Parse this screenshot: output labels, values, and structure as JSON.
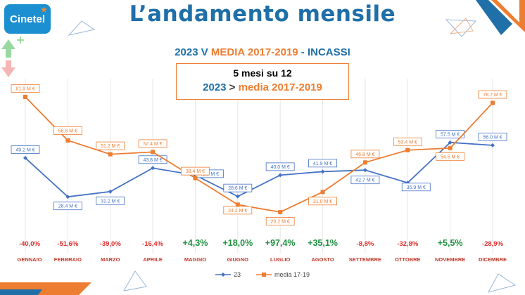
{
  "header": {
    "logo_text": "Cinetel",
    "title": "L’andamento mensile"
  },
  "subtitle": {
    "part1": "2023 V ",
    "part2": "MEDIA 2017-2019",
    "part3": " - INCASSI"
  },
  "info_box": {
    "line1": "5 mesi su 12",
    "line2_a": "2023",
    "line2_b": " > ",
    "line2_c": "media 2017-2019"
  },
  "colors": {
    "series_2023": "#4472c4",
    "series_media": "#ed7d31",
    "positive": "#1e8f3e",
    "negative": "#e03030",
    "title": "#1f6fa8"
  },
  "chart_data": {
    "type": "line",
    "categories": [
      "GENNAIO",
      "FEBBRAIO",
      "MARZO",
      "APRILE",
      "MAGGIO",
      "GIUGNO",
      "LUGLIO",
      "AGOSTO",
      "SETTEMBRE",
      "OTTOBRE",
      "NOVEMBRE",
      "DICEMBRE"
    ],
    "series": [
      {
        "name": "23",
        "values": [
          49.2,
          28.4,
          31.2,
          43.8,
          40.0,
          28.6,
          40.0,
          41.9,
          42.7,
          35.9,
          57.5,
          56.0
        ],
        "labels": [
          "49.2 M €",
          "28.4 M €",
          "31.2 M €",
          "43.8 M €",
          "40.0 M €",
          "28.6 M €",
          "40.0 M €",
          "41.9 M €",
          "42.7 M €",
          "35.9 M €",
          "57.5 M €",
          "56.0 M €"
        ]
      },
      {
        "name": "media 17-19",
        "values": [
          81.9,
          58.6,
          51.2,
          52.4,
          38.4,
          24.2,
          20.2,
          31.0,
          46.8,
          53.4,
          54.5,
          78.7
        ],
        "labels": [
          "81.9 M €",
          "58.6 M €",
          "51.2 M €",
          "52.4 M €",
          "38.4 M €",
          "24.2 M €",
          "20.2 M €",
          "31.0 M €",
          "46.8 M €",
          "53.4 M €",
          "54.5 M €",
          "78.7 M €"
        ]
      }
    ],
    "pct_changes": [
      "-40,0%",
      "-51,6%",
      "-39,0%",
      "-16,4%",
      "+4,3%",
      "+18,0%",
      "+97,4%",
      "+35,1%",
      "-8,8%",
      "-32,8%",
      "+5,5%",
      "-28,9%"
    ],
    "grid": true,
    "legend_position": "bottom"
  }
}
